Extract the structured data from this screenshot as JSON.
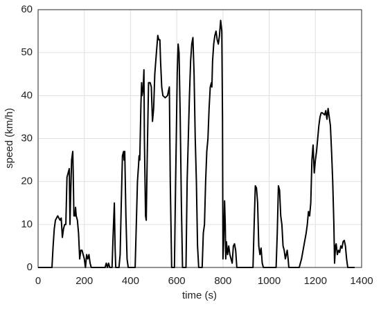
{
  "chart_data": {
    "type": "line",
    "xlabel": "time (s)",
    "ylabel": "speed (km/h)",
    "x": [
      0,
      60,
      65,
      70,
      75,
      85,
      95,
      100,
      105,
      110,
      115,
      120,
      125,
      130,
      135,
      138,
      140,
      145,
      150,
      152,
      155,
      160,
      162,
      165,
      170,
      175,
      180,
      185,
      190,
      195,
      200,
      205,
      210,
      215,
      220,
      225,
      230,
      290,
      295,
      300,
      305,
      310,
      320,
      325,
      330,
      333,
      336,
      350,
      355,
      360,
      365,
      370,
      372,
      375,
      380,
      385,
      390,
      420,
      425,
      430,
      435,
      437,
      440,
      445,
      448,
      450,
      455,
      458,
      460,
      465,
      468,
      472,
      478,
      485,
      490,
      495,
      500,
      505,
      512,
      518,
      522,
      527,
      530,
      535,
      540,
      550,
      560,
      568,
      572,
      578,
      590,
      595,
      598,
      602,
      606,
      610,
      615,
      620,
      625,
      640,
      645,
      650,
      655,
      660,
      665,
      670,
      675,
      680,
      685,
      690,
      695,
      710,
      715,
      720,
      725,
      730,
      735,
      740,
      745,
      750,
      752,
      755,
      760,
      765,
      770,
      775,
      780,
      785,
      790,
      795,
      798,
      800,
      803,
      807,
      810,
      812,
      815,
      820,
      825,
      830,
      835,
      840,
      845,
      850,
      855,
      860,
      930,
      935,
      940,
      945,
      950,
      955,
      960,
      965,
      970,
      975,
      1030,
      1035,
      1040,
      1045,
      1050,
      1055,
      1060,
      1065,
      1070,
      1078,
      1082,
      1085,
      1130,
      1140,
      1150,
      1160,
      1165,
      1170,
      1175,
      1180,
      1185,
      1190,
      1195,
      1200,
      1205,
      1210,
      1215,
      1220,
      1225,
      1230,
      1240,
      1245,
      1250,
      1255,
      1260,
      1265,
      1270,
      1275,
      1280,
      1283,
      1287,
      1290,
      1295,
      1300,
      1305,
      1310,
      1315,
      1320,
      1325,
      1330,
      1335,
      1340,
      1370
    ],
    "values": [
      0,
      0,
      5,
      9,
      11,
      12,
      11,
      11.5,
      7,
      9,
      10,
      10,
      21,
      22,
      23,
      10,
      15,
      25,
      27,
      22,
      12,
      12,
      14,
      12,
      11,
      8,
      2,
      4,
      4,
      3,
      2,
      0,
      3,
      2,
      3,
      1,
      0,
      0,
      1,
      0,
      1,
      0,
      0,
      8,
      15,
      5,
      0,
      0,
      3,
      15,
      26,
      27,
      25,
      27,
      12,
      2,
      0,
      0,
      10,
      20,
      24,
      26,
      25,
      38,
      43,
      40,
      42,
      46,
      30,
      12,
      11,
      25,
      43,
      43,
      42,
      34,
      37,
      45,
      50,
      54,
      53,
      53,
      48,
      42,
      40,
      39.5,
      40,
      42,
      20,
      0,
      0,
      20,
      30,
      45,
      52,
      50,
      35,
      15,
      0,
      0,
      20,
      30,
      40,
      48,
      52,
      53.5,
      45,
      30,
      20,
      5,
      0,
      0,
      8,
      10,
      20,
      27,
      30,
      37,
      42,
      43,
      42,
      48,
      52,
      54,
      55,
      53,
      52,
      54,
      57.5,
      55,
      35,
      2,
      6,
      15.5,
      10,
      2,
      6,
      3,
      5,
      3,
      2,
      1,
      5,
      5.5,
      4,
      0,
      0,
      10,
      19,
      18.5,
      15,
      5,
      3,
      4.5,
      1,
      0,
      0,
      8,
      19,
      18,
      12,
      10,
      5,
      4,
      2,
      4,
      2,
      0,
      0,
      2,
      5,
      8,
      10,
      13,
      12,
      15,
      25,
      28.5,
      22,
      25,
      27,
      30,
      33,
      35,
      36,
      36,
      35.5,
      36.5,
      34.5,
      37,
      35,
      33,
      27,
      20,
      10,
      1,
      5,
      5.5,
      3,
      4,
      3.5,
      5,
      4.5,
      6,
      6.3,
      5,
      2,
      0,
      0
    ],
    "color": "#000000",
    "xlim": [
      0,
      1400
    ],
    "xticks": [
      0,
      200,
      400,
      600,
      800,
      1000,
      1200,
      1400
    ],
    "ylim": [
      0,
      60
    ],
    "yticks": [
      0,
      10,
      20,
      30,
      40,
      50,
      60
    ],
    "grid": true
  }
}
